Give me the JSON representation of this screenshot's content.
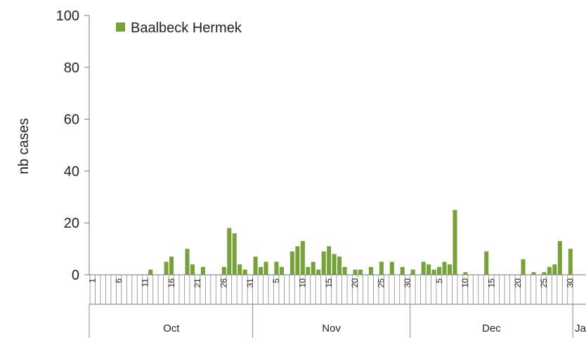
{
  "chart_data": {
    "type": "bar",
    "ylabel": "nb cases",
    "ylim": [
      0,
      100
    ],
    "yticks": [
      0,
      20,
      40,
      60,
      80,
      100
    ],
    "grid": false,
    "legend_position": "top-left",
    "x_start": "Oct 1",
    "x_tick_labels": [
      "1",
      "6",
      "11",
      "16",
      "21",
      "26",
      "31",
      "5",
      "10",
      "15",
      "20",
      "25",
      "30",
      "5",
      "10",
      "15",
      "20",
      "25",
      "30"
    ],
    "months": [
      "Oct",
      "Nov",
      "Dec",
      "Ja"
    ],
    "series": [
      {
        "name": "Baalbeck Hermek",
        "color": "#77a23a",
        "values": [
          0,
          0,
          0,
          0,
          0,
          0,
          0,
          0,
          0,
          0,
          0,
          2,
          0,
          0,
          5,
          7,
          0,
          0,
          10,
          4,
          0,
          3,
          0,
          0,
          0,
          3,
          18,
          16,
          4,
          2,
          0,
          7,
          3,
          5,
          0,
          5,
          3,
          0,
          9,
          11,
          13,
          3,
          5,
          2,
          9,
          11,
          8,
          7,
          3,
          0,
          2,
          2,
          0,
          3,
          0,
          5,
          0,
          5,
          0,
          3,
          0,
          2,
          0,
          5,
          4,
          2,
          3,
          5,
          4,
          25,
          0,
          1,
          0,
          0,
          0,
          9,
          0,
          0,
          0,
          0,
          0,
          0,
          6,
          0,
          1,
          0,
          1,
          3,
          4,
          13,
          0,
          10
        ]
      }
    ]
  }
}
